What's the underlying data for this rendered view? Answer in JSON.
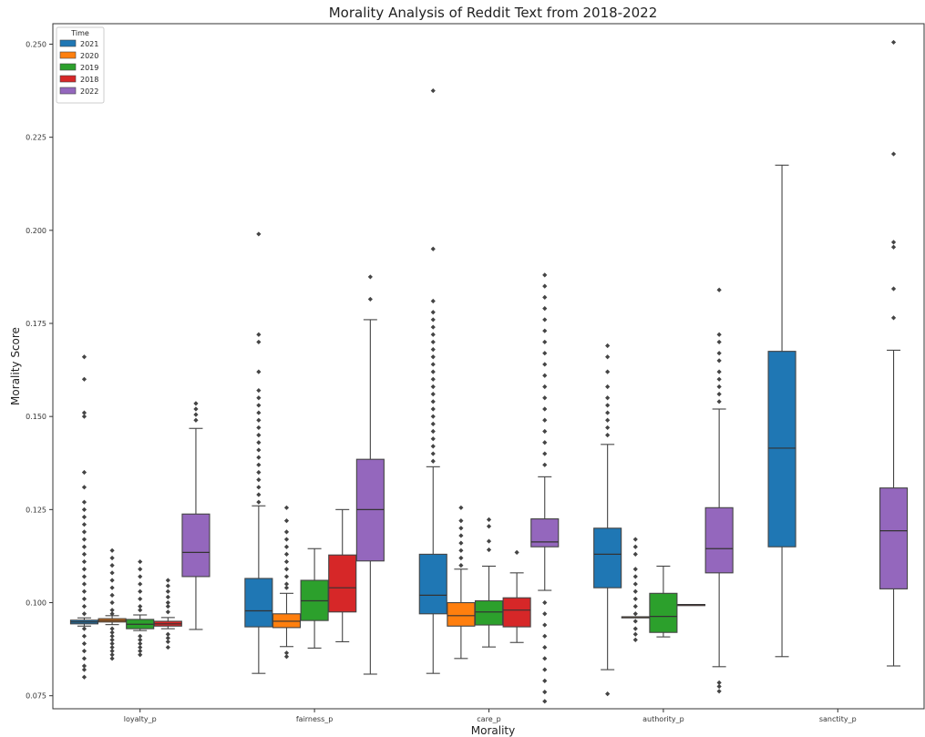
{
  "chart_data": {
    "type": "box",
    "title": "Morality Analysis of Reddit Text from 2018-2022",
    "xlabel": "Morality",
    "ylabel": "Morality Score",
    "ylim": [
      0.0715,
      0.2555
    ],
    "yticks": [
      0.075,
      0.1,
      0.125,
      0.15,
      0.175,
      0.2,
      0.225,
      0.25
    ],
    "ytick_labels": [
      "0.075",
      "0.100",
      "0.125",
      "0.150",
      "0.175",
      "0.200",
      "0.225",
      "0.250"
    ],
    "grid": false,
    "legend": {
      "title": "Time",
      "placement": "top-left",
      "entries": [
        "2021",
        "2020",
        "2019",
        "2018",
        "2022"
      ]
    },
    "categories": [
      "loyalty_p",
      "fairness_p",
      "care_p",
      "authority_p",
      "sanctity_p"
    ],
    "series": [
      {
        "name": "2021",
        "color": "#1f77b4",
        "boxes": [
          {
            "category": "loyalty_p",
            "min": 0.0937,
            "q1": 0.0943,
            "median": 0.0948,
            "q3": 0.0953,
            "max": 0.0959,
            "outliers": [
              0.166,
              0.16,
              0.151,
              0.15,
              0.135,
              0.131,
              0.127,
              0.125,
              0.123,
              0.121,
              0.119,
              0.117,
              0.115,
              0.113,
              0.111,
              0.109,
              0.107,
              0.105,
              0.103,
              0.101,
              0.099,
              0.097,
              0.093,
              0.091,
              0.089,
              0.087,
              0.085,
              0.083,
              0.082,
              0.08
            ]
          },
          {
            "category": "fairness_p",
            "min": 0.081,
            "q1": 0.0935,
            "median": 0.0978,
            "q3": 0.1065,
            "max": 0.126,
            "outliers": [
              0.199,
              0.172,
              0.17,
              0.162,
              0.157,
              0.155,
              0.153,
              0.151,
              0.149,
              0.147,
              0.145,
              0.143,
              0.141,
              0.139,
              0.137,
              0.135,
              0.133,
              0.131,
              0.129,
              0.127
            ]
          },
          {
            "category": "care_p",
            "min": 0.081,
            "q1": 0.097,
            "median": 0.102,
            "q3": 0.113,
            "max": 0.1365,
            "outliers": [
              0.2375,
              0.195,
              0.181,
              0.178,
              0.176,
              0.174,
              0.172,
              0.17,
              0.168,
              0.166,
              0.164,
              0.162,
              0.16,
              0.158,
              0.156,
              0.154,
              0.152,
              0.15,
              0.148,
              0.146,
              0.144,
              0.142,
              0.14,
              0.138
            ]
          },
          {
            "category": "authority_p",
            "min": 0.082,
            "q1": 0.104,
            "median": 0.113,
            "q3": 0.12,
            "max": 0.1425,
            "outliers": [
              0.169,
              0.166,
              0.162,
              0.158,
              0.155,
              0.153,
              0.151,
              0.149,
              0.147,
              0.145,
              0.0755
            ]
          },
          {
            "category": "sanctity_p",
            "min": 0.0855,
            "q1": 0.115,
            "median": 0.1415,
            "q3": 0.1675,
            "max": 0.2175,
            "outliers": []
          }
        ]
      },
      {
        "name": "2020",
        "color": "#ff7f0e",
        "boxes": [
          {
            "category": "loyalty_p",
            "min": 0.0941,
            "q1": 0.0948,
            "median": 0.0952,
            "q3": 0.0957,
            "max": 0.0965,
            "outliers": [
              0.114,
              0.112,
              0.11,
              0.108,
              0.106,
              0.104,
              0.102,
              0.1,
              0.098,
              0.097,
              0.093,
              0.092,
              0.091,
              0.09,
              0.089,
              0.088,
              0.087,
              0.086,
              0.085
            ]
          },
          {
            "category": "fairness_p",
            "min": 0.0882,
            "q1": 0.0933,
            "median": 0.095,
            "q3": 0.097,
            "max": 0.1025,
            "outliers": [
              0.1255,
              0.122,
              0.119,
              0.117,
              0.115,
              0.113,
              0.111,
              0.109,
              0.107,
              0.105,
              0.104,
              0.0865,
              0.0855
            ]
          },
          {
            "category": "care_p",
            "min": 0.085,
            "q1": 0.0937,
            "median": 0.0965,
            "q3": 0.1,
            "max": 0.109,
            "outliers": [
              0.1255,
              0.122,
              0.12,
              0.118,
              0.116,
              0.114,
              0.112,
              0.11
            ]
          },
          {
            "category": "authority_p",
            "min": 0.0962,
            "q1": 0.0962,
            "median": 0.0962,
            "q3": 0.0962,
            "max": 0.0962,
            "outliers": [
              0.117,
              0.115,
              0.113,
              0.109,
              0.107,
              0.105,
              0.103,
              0.101,
              0.099,
              0.097,
              0.095,
              0.093,
              0.0915,
              0.09
            ]
          },
          {
            "category": "sanctity_p",
            "min": null,
            "q1": null,
            "median": null,
            "q3": null,
            "max": null,
            "outliers": []
          }
        ]
      },
      {
        "name": "2019",
        "color": "#2ca02c",
        "boxes": [
          {
            "category": "loyalty_p",
            "min": 0.0925,
            "q1": 0.093,
            "median": 0.0942,
            "q3": 0.0955,
            "max": 0.0967,
            "outliers": [
              0.111,
              0.109,
              0.107,
              0.105,
              0.103,
              0.101,
              0.099,
              0.098,
              0.091,
              0.09,
              0.089,
              0.088,
              0.087,
              0.086
            ]
          },
          {
            "category": "fairness_p",
            "min": 0.0878,
            "q1": 0.0952,
            "median": 0.1005,
            "q3": 0.106,
            "max": 0.1145,
            "outliers": []
          },
          {
            "category": "care_p",
            "min": 0.0881,
            "q1": 0.094,
            "median": 0.0975,
            "q3": 0.1005,
            "max": 0.1098,
            "outliers": [
              0.1223,
              0.1205,
              0.1165,
              0.1142
            ]
          },
          {
            "category": "authority_p",
            "min": 0.0908,
            "q1": 0.092,
            "median": 0.0963,
            "q3": 0.1025,
            "max": 0.1098,
            "outliers": []
          },
          {
            "category": "sanctity_p",
            "min": null,
            "q1": null,
            "median": null,
            "q3": null,
            "max": null,
            "outliers": []
          }
        ]
      },
      {
        "name": "2018",
        "color": "#d62728",
        "boxes": [
          {
            "category": "loyalty_p",
            "min": 0.093,
            "q1": 0.0937,
            "median": 0.0943,
            "q3": 0.095,
            "max": 0.096,
            "outliers": [
              0.106,
              0.1045,
              0.103,
              0.1015,
              0.1,
              0.099,
              0.0975,
              0.0915,
              0.0905,
              0.0895,
              0.088
            ]
          },
          {
            "category": "fairness_p",
            "min": 0.0895,
            "q1": 0.0975,
            "median": 0.104,
            "q3": 0.1128,
            "max": 0.125,
            "outliers": []
          },
          {
            "category": "care_p",
            "min": 0.0893,
            "q1": 0.0935,
            "median": 0.098,
            "q3": 0.1013,
            "max": 0.108,
            "outliers": [
              0.1135
            ]
          },
          {
            "category": "authority_p",
            "min": 0.0995,
            "q1": 0.0995,
            "median": 0.0995,
            "q3": 0.0995,
            "max": 0.0995,
            "outliers": []
          },
          {
            "category": "sanctity_p",
            "min": null,
            "q1": null,
            "median": null,
            "q3": null,
            "max": null,
            "outliers": []
          }
        ]
      },
      {
        "name": "2022",
        "color": "#9467bd",
        "boxes": [
          {
            "category": "loyalty_p",
            "min": 0.0928,
            "q1": 0.107,
            "median": 0.1135,
            "q3": 0.1238,
            "max": 0.1468,
            "outliers": [
              0.1535,
              0.152,
              0.1505,
              0.149
            ]
          },
          {
            "category": "fairness_p",
            "min": 0.0808,
            "q1": 0.1112,
            "median": 0.125,
            "q3": 0.1385,
            "max": 0.176,
            "outliers": [
              0.1875,
              0.1815
            ]
          },
          {
            "category": "care_p",
            "min": 0.1033,
            "q1": 0.115,
            "median": 0.1163,
            "q3": 0.1225,
            "max": 0.1338,
            "outliers": [
              0.188,
              0.185,
              0.182,
              0.179,
              0.176,
              0.173,
              0.17,
              0.167,
              0.164,
              0.161,
              0.158,
              0.155,
              0.152,
              0.149,
              0.146,
              0.143,
              0.14,
              0.137,
              0.1,
              0.097,
              0.094,
              0.091,
              0.088,
              0.085,
              0.082,
              0.079,
              0.076,
              0.0735
            ]
          },
          {
            "category": "authority_p",
            "min": 0.0828,
            "q1": 0.108,
            "median": 0.1145,
            "q3": 0.1255,
            "max": 0.152,
            "outliers": [
              0.184,
              0.172,
              0.17,
              0.167,
              0.165,
              0.162,
              0.16,
              0.158,
              0.156,
              0.154,
              0.0785,
              0.0775,
              0.0762
            ]
          },
          {
            "category": "sanctity_p",
            "min": 0.083,
            "q1": 0.1037,
            "median": 0.1193,
            "q3": 0.1308,
            "max": 0.1678,
            "outliers": [
              0.2505,
              0.2205,
              0.1968,
              0.1955,
              0.1843,
              0.1765
            ]
          }
        ]
      }
    ]
  }
}
